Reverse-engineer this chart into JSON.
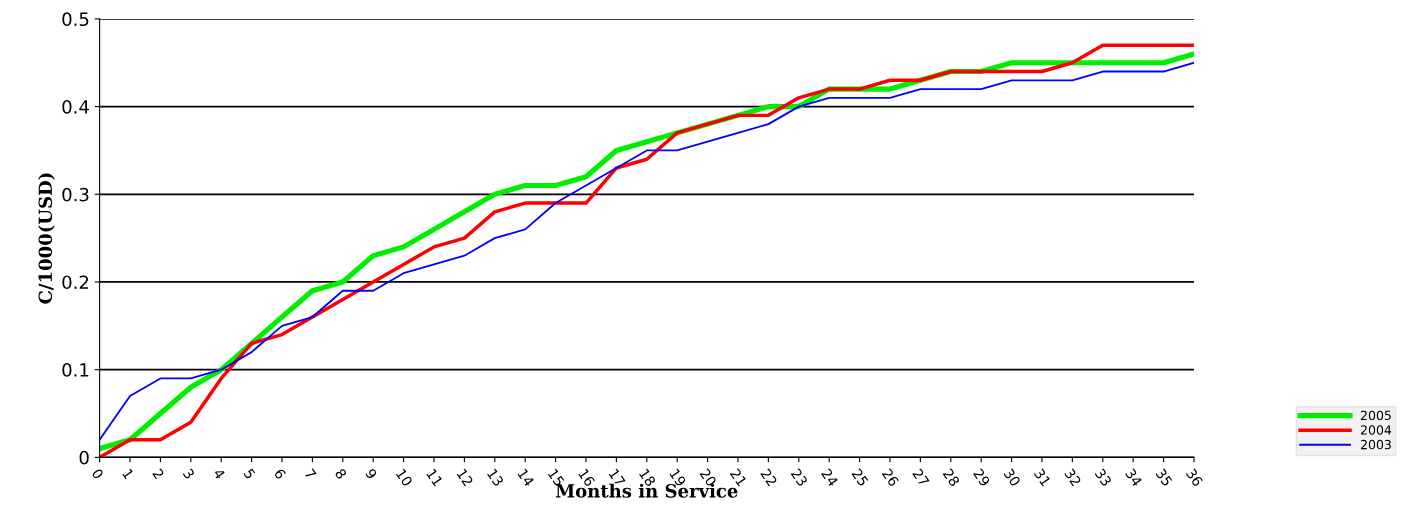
{
  "chart_data": {
    "type": "line",
    "xlabel": "Months in Service",
    "ylabel": "C/1000(USD)",
    "x": [
      0,
      1,
      2,
      3,
      4,
      5,
      6,
      7,
      8,
      9,
      10,
      11,
      12,
      13,
      14,
      15,
      16,
      17,
      18,
      19,
      20,
      21,
      22,
      23,
      24,
      25,
      26,
      27,
      28,
      29,
      30,
      31,
      32,
      33,
      34,
      35,
      36
    ],
    "series": [
      {
        "name": "2005",
        "color": "#00ee00",
        "values": [
          0.01,
          0.02,
          0.05,
          0.08,
          0.1,
          0.13,
          0.16,
          0.19,
          0.2,
          0.23,
          0.24,
          0.26,
          0.28,
          0.3,
          0.31,
          0.31,
          0.32,
          0.35,
          0.36,
          0.37,
          0.38,
          0.39,
          0.4,
          0.4,
          0.42,
          0.42,
          0.42,
          0.43,
          0.44,
          0.44,
          0.45,
          0.45,
          0.45,
          0.45,
          0.45,
          0.45,
          0.46
        ]
      },
      {
        "name": "2004",
        "color": "#ff0000",
        "values": [
          0,
          0.02,
          0.02,
          0.04,
          0.09,
          0.13,
          0.14,
          0.16,
          0.18,
          0.2,
          0.22,
          0.24,
          0.25,
          0.28,
          0.29,
          0.29,
          0.29,
          0.33,
          0.34,
          0.37,
          0.38,
          0.39,
          0.39,
          0.41,
          0.42,
          0.42,
          0.43,
          0.43,
          0.44,
          0.44,
          0.44,
          0.44,
          0.45,
          0.47,
          0.47,
          0.47,
          0.47
        ]
      },
      {
        "name": "2003",
        "color": "#0000ff",
        "values": [
          0.02,
          0.07,
          0.09,
          0.09,
          0.1,
          0.12,
          0.15,
          0.16,
          0.19,
          0.19,
          0.21,
          0.22,
          0.23,
          0.25,
          0.26,
          0.29,
          0.31,
          0.33,
          0.35,
          0.35,
          0.36,
          0.37,
          0.38,
          0.4,
          0.41,
          0.41,
          0.41,
          0.42,
          0.42,
          0.42,
          0.43,
          0.43,
          0.43,
          0.44,
          0.44,
          0.44,
          0.45
        ]
      }
    ],
    "xlim": [
      0,
      36
    ],
    "xticks": [
      0,
      1,
      2,
      3,
      4,
      5,
      6,
      7,
      8,
      9,
      10,
      11,
      12,
      13,
      14,
      15,
      16,
      17,
      18,
      19,
      20,
      21,
      22,
      23,
      24,
      25,
      26,
      27,
      28,
      29,
      30,
      31,
      32,
      33,
      34,
      35,
      36
    ],
    "ylim": [
      0,
      0.5
    ],
    "yticks": [
      0,
      0.1,
      0.2,
      0.3,
      0.4,
      0.5
    ],
    "grid": "y",
    "legend": "bottom right",
    "marker": "none",
    "line_style": "solid"
  }
}
